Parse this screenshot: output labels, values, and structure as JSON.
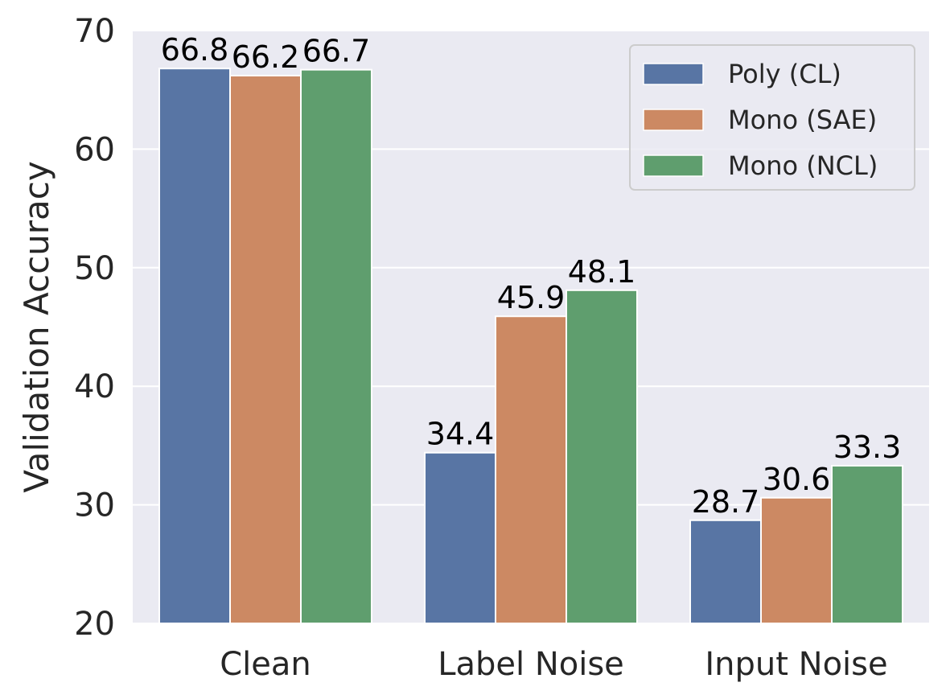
{
  "chart_data": {
    "type": "bar",
    "title": "",
    "xlabel": "",
    "ylabel": "Validation Accuracy",
    "ylim": [
      20,
      70
    ],
    "yticks": [
      20,
      30,
      40,
      50,
      60,
      70
    ],
    "categories": [
      "Clean",
      "Label Noise",
      "Input Noise"
    ],
    "series": [
      {
        "name": "Poly (CL)",
        "color": "#5875a4",
        "values": [
          66.8,
          34.4,
          28.7
        ],
        "labels": [
          "66.8",
          "34.4",
          "28.7"
        ]
      },
      {
        "name": "Mono (SAE)",
        "color": "#cc8963",
        "values": [
          66.2,
          45.9,
          30.6
        ],
        "labels": [
          "66.2",
          "45.9",
          "30.6"
        ]
      },
      {
        "name": "Mono (NCL)",
        "color": "#5f9e6e",
        "values": [
          66.7,
          48.1,
          33.3
        ],
        "labels": [
          "66.7",
          "48.1",
          "33.3"
        ]
      }
    ],
    "grid": true,
    "background": "#eaeaf2",
    "legend_position": "top-right"
  }
}
